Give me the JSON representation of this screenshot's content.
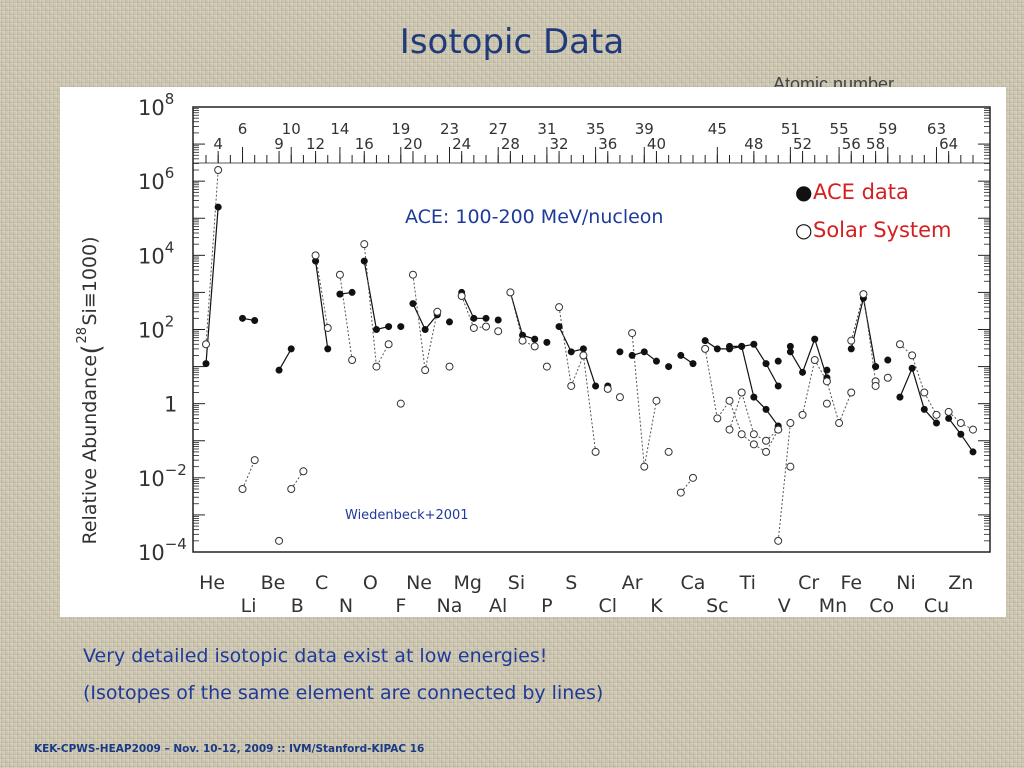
{
  "slide": {
    "title": "Isotopic Data",
    "caption_line1": "Very detailed isotopic data exist at low energies!",
    "caption_line2": "(Isotopes of the same element are connected by lines)",
    "footer": "KEK-CPWS-HEAP2009 – Nov. 10-12, 2009 :: IVM/Stanford-KIPAC 16"
  },
  "chart_data": {
    "type": "scatter",
    "title": "",
    "top_axis_label": "Atomic number",
    "ylabel_main": "Relative Abundance",
    "ylabel_norm_prefix": "(",
    "ylabel_norm_mass": "28",
    "ylabel_norm_element": "Si≡1000)",
    "yscale": "log",
    "ylim": [
      0.0001,
      100000000
    ],
    "y_ticks": [
      {
        "value": 100000000,
        "base": "10",
        "exp": "8"
      },
      {
        "value": 1000000,
        "base": "10",
        "exp": "6"
      },
      {
        "value": 10000,
        "base": "10",
        "exp": "4"
      },
      {
        "value": 100,
        "base": "10",
        "exp": "2"
      },
      {
        "value": 1,
        "base": "1",
        "exp": ""
      },
      {
        "value": 0.01,
        "base": "10",
        "exp": "−2"
      },
      {
        "value": 0.0001,
        "base": "10",
        "exp": "−4"
      }
    ],
    "xlim": [
      3,
      66
    ],
    "top_ticks_row1": [
      6,
      10,
      14,
      19,
      23,
      27,
      31,
      35,
      39,
      45,
      51,
      55,
      59,
      63
    ],
    "top_ticks_row2": [
      4,
      9,
      12,
      16,
      20,
      24,
      28,
      32,
      36,
      40,
      48,
      52,
      56,
      58,
      64
    ],
    "elements_row1": [
      {
        "symbol": "He",
        "x": 3.5
      },
      {
        "symbol": "Be",
        "x": 8.5
      },
      {
        "symbol": "C",
        "x": 12.5
      },
      {
        "symbol": "O",
        "x": 16.5
      },
      {
        "symbol": "Ne",
        "x": 20.5
      },
      {
        "symbol": "Mg",
        "x": 24.5
      },
      {
        "symbol": "Si",
        "x": 28.5
      },
      {
        "symbol": "S",
        "x": 33
      },
      {
        "symbol": "Ar",
        "x": 38
      },
      {
        "symbol": "Ca",
        "x": 43
      },
      {
        "symbol": "Ti",
        "x": 47.5
      },
      {
        "symbol": "Cr",
        "x": 52.5
      },
      {
        "symbol": "Fe",
        "x": 56
      },
      {
        "symbol": "Ni",
        "x": 60.5
      },
      {
        "symbol": "Zn",
        "x": 65
      }
    ],
    "elements_row2": [
      {
        "symbol": "Li",
        "x": 6.5
      },
      {
        "symbol": "B",
        "x": 10.5
      },
      {
        "symbol": "N",
        "x": 14.5
      },
      {
        "symbol": "F",
        "x": 19
      },
      {
        "symbol": "Na",
        "x": 23
      },
      {
        "symbol": "Al",
        "x": 27
      },
      {
        "symbol": "P",
        "x": 31
      },
      {
        "symbol": "Cl",
        "x": 36
      },
      {
        "symbol": "K",
        "x": 40
      },
      {
        "symbol": "Sc",
        "x": 45
      },
      {
        "symbol": "V",
        "x": 50.5
      },
      {
        "symbol": "Mn",
        "x": 54.5
      },
      {
        "symbol": "Co",
        "x": 58.5
      },
      {
        "symbol": "Cu",
        "x": 63
      }
    ],
    "legend": [
      {
        "marker": "●",
        "label": "ACE data",
        "color": "#d42020"
      },
      {
        "marker": "○",
        "label": "Solar System",
        "color": "#d42020"
      }
    ],
    "annotation": "ACE: 100-200 MeV/nucleon",
    "credit": "Wiedenbeck+2001",
    "series": [
      {
        "name": "ACE data",
        "marker": "filled",
        "groups": [
          [
            [
              3,
              12
            ],
            [
              4,
              200000
            ]
          ],
          [
            [
              6,
              200
            ],
            [
              7,
              175
            ]
          ],
          [
            [
              9,
              8
            ],
            [
              10,
              30
            ]
          ],
          [
            [
              12,
              7000
            ],
            [
              13,
              30
            ]
          ],
          [
            [
              14,
              900
            ],
            [
              15,
              1000
            ]
          ],
          [
            [
              16,
              7000
            ],
            [
              17,
              100
            ],
            [
              18,
              120
            ]
          ],
          [
            [
              19,
              120
            ]
          ],
          [
            [
              20,
              500
            ],
            [
              21,
              100
            ],
            [
              22,
              250
            ]
          ],
          [
            [
              23,
              160
            ]
          ],
          [
            [
              24,
              1000
            ],
            [
              25,
              200
            ],
            [
              26,
              200
            ]
          ],
          [
            [
              27,
              180
            ]
          ],
          [
            [
              28,
              1000
            ],
            [
              29,
              70
            ],
            [
              30,
              55
            ]
          ],
          [
            [
              31,
              45
            ]
          ],
          [
            [
              32,
              120
            ],
            [
              33,
              25
            ],
            [
              34,
              30
            ],
            [
              35,
              3
            ]
          ],
          [
            [
              36,
              3
            ]
          ],
          [
            [
              37,
              25
            ]
          ],
          [
            [
              38,
              20
            ],
            [
              39,
              25
            ],
            [
              40,
              14
            ]
          ],
          [
            [
              41,
              10
            ]
          ],
          [
            [
              42,
              20
            ],
            [
              43,
              12
            ]
          ],
          [
            [
              44,
              50
            ],
            [
              45,
              30
            ],
            [
              46,
              30
            ],
            [
              47,
              35
            ],
            [
              48,
              1.5
            ],
            [
              49,
              0.7
            ],
            [
              50,
              0.25
            ]
          ],
          [
            [
              51,
              35
            ]
          ],
          [
            [
              46,
              35
            ],
            [
              47,
              35
            ],
            [
              48,
              40
            ],
            [
              49,
              12
            ],
            [
              50,
              3
            ]
          ],
          [
            [
              50,
              14
            ]
          ],
          [
            [
              51,
              25
            ],
            [
              52,
              7
            ],
            [
              53,
              55
            ],
            [
              54,
              5
            ]
          ],
          [
            [
              54,
              8
            ]
          ],
          [
            [
              56,
              30
            ],
            [
              57,
              700
            ],
            [
              58,
              10
            ]
          ],
          [
            [
              58,
              10
            ]
          ],
          [
            [
              59,
              15
            ]
          ],
          [
            [
              60,
              1.5
            ],
            [
              61,
              9
            ],
            [
              62,
              0.7
            ],
            [
              63,
              0.3
            ]
          ],
          [
            [
              64,
              0.4
            ],
            [
              65,
              0.15
            ],
            [
              66,
              0.05
            ]
          ]
        ]
      },
      {
        "name": "Solar System",
        "marker": "open",
        "groups": [
          [
            [
              3,
              40
            ],
            [
              4,
              2000000
            ]
          ],
          [
            [
              6,
              0.005
            ],
            [
              7,
              0.03
            ]
          ],
          [
            [
              9,
              0.0002
            ]
          ],
          [
            [
              10,
              0.005
            ],
            [
              11,
              0.015
            ]
          ],
          [
            [
              12,
              10000
            ],
            [
              13,
              110
            ]
          ],
          [
            [
              14,
              3000
            ],
            [
              15,
              15
            ]
          ],
          [
            [
              16,
              20000
            ],
            [
              17,
              10
            ],
            [
              18,
              40
            ]
          ],
          [
            [
              19,
              1
            ]
          ],
          [
            [
              20,
              3000
            ],
            [
              21,
              8
            ],
            [
              22,
              300
            ]
          ],
          [
            [
              23,
              10
            ]
          ],
          [
            [
              24,
              800
            ],
            [
              25,
              110
            ],
            [
              26,
              120
            ]
          ],
          [
            [
              27,
              90
            ]
          ],
          [
            [
              28,
              1000
            ],
            [
              29,
              50
            ],
            [
              30,
              35
            ]
          ],
          [
            [
              31,
              10
            ]
          ],
          [
            [
              32,
              400
            ],
            [
              33,
              3
            ],
            [
              34,
              20
            ],
            [
              35,
              0.05
            ]
          ],
          [
            [
              36,
              2.5
            ]
          ],
          [
            [
              37,
              1.5
            ]
          ],
          [
            [
              38,
              80
            ],
            [
              39,
              0.02
            ],
            [
              40,
              1.2
            ]
          ],
          [
            [
              41,
              0.05
            ]
          ],
          [
            [
              42,
              0.004
            ],
            [
              43,
              0.01
            ]
          ],
          [
            [
              44,
              30
            ],
            [
              45,
              0.4
            ],
            [
              46,
              1.2
            ],
            [
              47,
              0.15
            ],
            [
              48,
              0.08
            ],
            [
              49,
              0.05
            ],
            [
              50,
              0.2
            ]
          ],
          [
            [
              51,
              0.02
            ]
          ],
          [
            [
              46,
              0.2
            ],
            [
              47,
              2
            ],
            [
              48,
              0.15
            ],
            [
              49,
              0.1
            ],
            [
              50,
              0.2
            ]
          ],
          [
            [
              50,
              0.0002
            ],
            [
              51,
              0.3
            ]
          ],
          [
            [
              52,
              0.5
            ],
            [
              53,
              15
            ],
            [
              54,
              4
            ],
            [
              55,
              0.3
            ],
            [
              56,
              2
            ]
          ],
          [
            [
              54,
              1
            ]
          ],
          [
            [
              56,
              50
            ],
            [
              57,
              900
            ],
            [
              58,
              4
            ]
          ],
          [
            [
              58,
              3
            ]
          ],
          [
            [
              59,
              5
            ]
          ],
          [
            [
              60,
              40
            ],
            [
              61,
              20
            ],
            [
              62,
              2
            ],
            [
              63,
              0.5
            ]
          ],
          [
            [
              64,
              0.6
            ],
            [
              65,
              0.3
            ],
            [
              66,
              0.2
            ]
          ]
        ]
      }
    ]
  }
}
